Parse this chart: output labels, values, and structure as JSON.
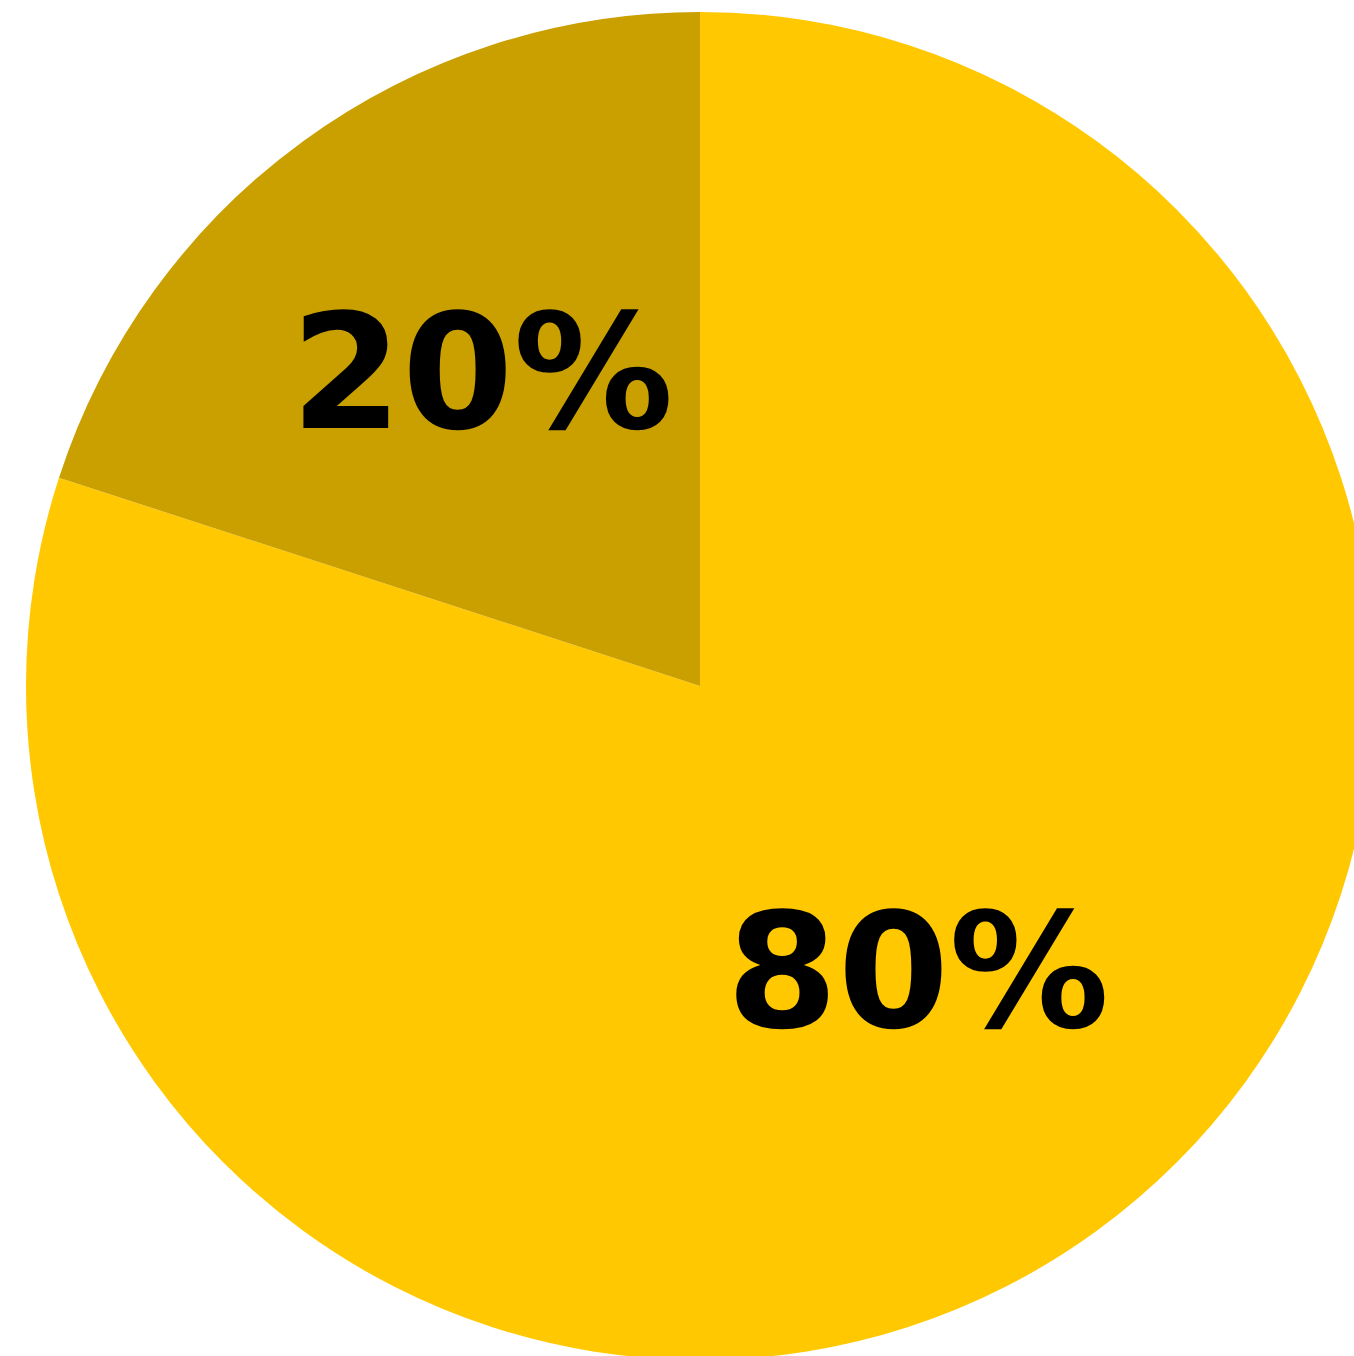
{
  "chart_data": {
    "type": "pie",
    "categories": [
      null,
      null
    ],
    "values": [
      80,
      20
    ],
    "colors": [
      "#ffc800",
      "#c9a000"
    ],
    "value_labels": [
      "80%",
      "20%"
    ],
    "legend": false
  }
}
